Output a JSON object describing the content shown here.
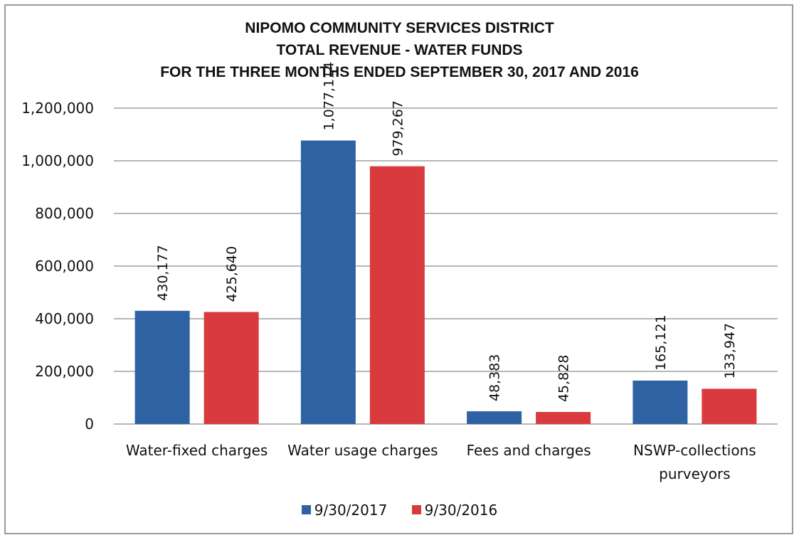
{
  "chart_data": {
    "type": "bar",
    "title": "NIPOMO COMMUNITY SERVICES DISTRICT",
    "subtitle": "TOTAL REVENUE - WATER FUNDS",
    "subtitle2": "FOR THE THREE MONTHS ENDED SEPTEMBER 30, 2017 AND 2016",
    "categories": [
      [
        "Water-fixed charges"
      ],
      [
        "Water usage charges"
      ],
      [
        "Fees and charges"
      ],
      [
        "NSWP-collections",
        "purveyors"
      ]
    ],
    "series": [
      {
        "name": "9/30/2017",
        "color": "#2e62a2",
        "values": [
          430177,
          1077114,
          48383,
          165121
        ],
        "labels": [
          "430,177",
          "1,077,114",
          "48,383",
          "165,121"
        ]
      },
      {
        "name": "9/30/2016",
        "color": "#d93a3e",
        "values": [
          425640,
          979267,
          45828,
          133947
        ],
        "labels": [
          "425,640",
          "979,267",
          "45,828",
          "133,947"
        ]
      }
    ],
    "ylim": [
      0,
      1200000
    ],
    "yticks": [
      0,
      200000,
      400000,
      600000,
      800000,
      1000000,
      1200000
    ],
    "ytick_labels": [
      "0",
      "200,000",
      "400,000",
      "600,000",
      "800,000",
      "1,000,000",
      "1,200,000"
    ],
    "grid": true,
    "legend_position": "bottom"
  }
}
